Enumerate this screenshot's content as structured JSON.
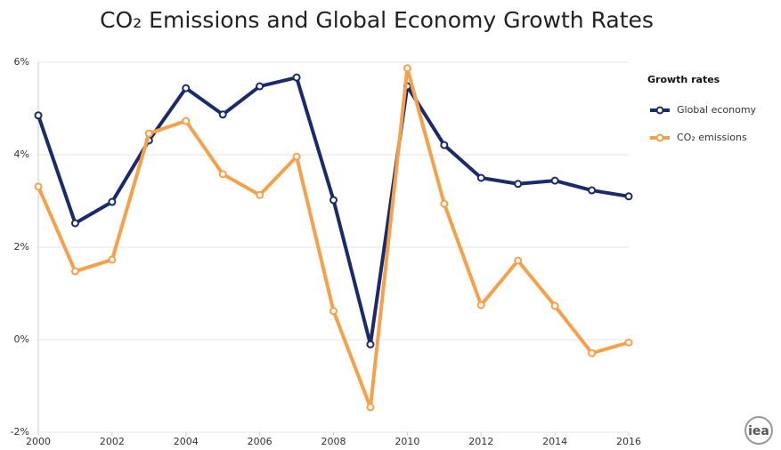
{
  "chart_data": {
    "type": "line",
    "title": "CO₂ Emissions and Global Economy Growth Rates",
    "x": [
      2000,
      2001,
      2002,
      2003,
      2004,
      2005,
      2006,
      2007,
      2008,
      2009,
      2010,
      2011,
      2012,
      2013,
      2014,
      2015,
      2016
    ],
    "series": [
      {
        "name": "Global economy",
        "color": "#1b2a6b",
        "values": [
          4.85,
          2.52,
          2.98,
          4.31,
          5.44,
          4.87,
          5.48,
          5.67,
          3.02,
          -0.1,
          5.48,
          4.21,
          3.5,
          3.37,
          3.44,
          3.23,
          3.1
        ]
      },
      {
        "name": "CO₂ emissions",
        "color": "#f7a04a",
        "values": [
          3.31,
          1.48,
          1.73,
          4.46,
          4.73,
          3.58,
          3.13,
          3.96,
          0.62,
          -1.46,
          5.87,
          2.94,
          0.75,
          1.71,
          0.73,
          -0.29,
          -0.06
        ]
      }
    ],
    "xlim": [
      2000,
      2016
    ],
    "xticks": [
      2000,
      2002,
      2004,
      2006,
      2008,
      2010,
      2012,
      2014,
      2016
    ],
    "ylim": [
      -2,
      6
    ],
    "yticks": [
      {
        "value": -2,
        "label": "-2%"
      },
      {
        "value": 0,
        "label": "0%"
      },
      {
        "value": 2,
        "label": "2%"
      },
      {
        "value": 4,
        "label": "4%"
      },
      {
        "value": 6,
        "label": "6%"
      }
    ],
    "grid": true,
    "legend_title": "Growth rates",
    "legend_position": "right",
    "logo": "iea"
  }
}
